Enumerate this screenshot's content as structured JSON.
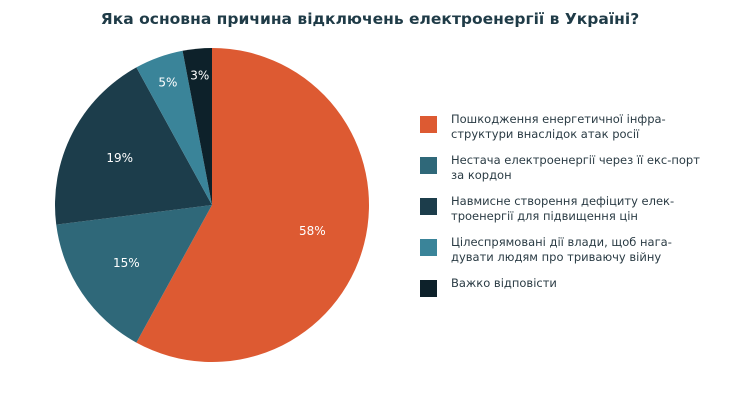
{
  "chart_data": {
    "type": "pie",
    "title": "Яка основна причина відключень електроенергії в Україні?",
    "legend_position": "right",
    "slices": [
      {
        "label": "Пошкодження енергетичної інфра-структури внаслідок атак росії",
        "value": 58,
        "data_label": "58%",
        "color": "#dd5a32"
      },
      {
        "label": "Нестача електроенергії через її екс-порт за кордон",
        "value": 15,
        "data_label": "15%",
        "color": "#2f6879"
      },
      {
        "label": "Навмисне створення дефіциту елек-троенергії для підвищення цін",
        "value": 19,
        "data_label": "19%",
        "color": "#1c3d4b"
      },
      {
        "label": "Цілеспрямовані дії влади, щоб нага-дувати людям про триваючу війну",
        "value": 5,
        "data_label": "5%",
        "color": "#3a8499"
      },
      {
        "label": "Важко відповісти",
        "value": 3,
        "data_label": "3%",
        "color": "#0d212a"
      }
    ]
  }
}
